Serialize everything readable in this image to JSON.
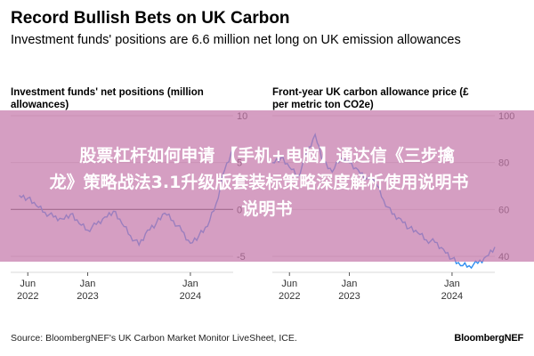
{
  "header": {
    "title": "Record Bullish Bets on UK Carbon",
    "subtitle": "Investment funds' positions are 6.6 million net long on UK emission allowances"
  },
  "chart_data": [
    {
      "type": "line",
      "title": "Investment funds' net positions (million allowances)",
      "ylim": [
        -5,
        10
      ],
      "y_ticks": [
        "10",
        "5",
        "0",
        "-5"
      ],
      "x_ticks": [
        {
          "line1": "Jun",
          "line2": "2022"
        },
        {
          "line1": "Jan",
          "line2": "2023"
        },
        {
          "line1": "Jan",
          "line2": "2024"
        }
      ],
      "color": "#2f8ef0",
      "series": [
        {
          "x": [
            "2022-05",
            "2022-06",
            "2022-07",
            "2022-08",
            "2022-09",
            "2022-10",
            "2022-11",
            "2022-12",
            "2023-01",
            "2023-02",
            "2023-03",
            "2023-04",
            "2023-05",
            "2023-06",
            "2023-07",
            "2023-08",
            "2023-09",
            "2023-10",
            "2023-11",
            "2023-12",
            "2024-01",
            "2024-02",
            "2024-03",
            "2024-04",
            "2024-05",
            "2024-06"
          ],
          "values": [
            1.5,
            1.2,
            0.4,
            -0.3,
            -0.8,
            -1.0,
            -0.5,
            -1.5,
            -2.2,
            -1.6,
            -0.8,
            -0.2,
            -1.5,
            -2.8,
            -3.8,
            -2.2,
            -1.5,
            -0.4,
            -1.2,
            -2.3,
            -3.6,
            -2.8,
            -1.8,
            0.6,
            4.2,
            6.6
          ]
        }
      ]
    },
    {
      "type": "line",
      "title": "Front-year UK carbon allowance price (£ per metric ton CO2e)",
      "ylim": [
        40,
        100
      ],
      "y_ticks": [
        "100",
        "80",
        "60",
        "40"
      ],
      "x_ticks": [
        {
          "line1": "Jun",
          "line2": "2022"
        },
        {
          "line1": "Jan",
          "line2": "2023"
        },
        {
          "line1": "Jan",
          "line2": "2024"
        }
      ],
      "color": "#2f8ef0",
      "series": [
        {
          "x": [
            "2022-04",
            "2022-05",
            "2022-06",
            "2022-07",
            "2022-08",
            "2022-09",
            "2022-10",
            "2022-11",
            "2022-12",
            "2023-01",
            "2023-02",
            "2023-03",
            "2023-04",
            "2023-05",
            "2023-06",
            "2023-07",
            "2023-08",
            "2023-09",
            "2023-10",
            "2023-11",
            "2023-12",
            "2024-01",
            "2024-02",
            "2024-03",
            "2024-04",
            "2024-05",
            "2024-06"
          ],
          "values": [
            80,
            82,
            78,
            74,
            84,
            92,
            80,
            76,
            82,
            80,
            77,
            73,
            72,
            64,
            58,
            56,
            52,
            50,
            47,
            46,
            43,
            39,
            36,
            36,
            37,
            40,
            44
          ]
        }
      ]
    }
  ],
  "overlay": {
    "line1": "股票杠杆如何申请 【手机+电脑】通达信《三步擒",
    "line2": "龙》策略战法3.1升级版套装标策略深度解析使用说明书",
    "line3": "说明书"
  },
  "footer": {
    "source": "Source: BloombergNEF's UK Carbon Market Monitor LiveSheet, ICE.",
    "brand": "BloombergNEF"
  }
}
